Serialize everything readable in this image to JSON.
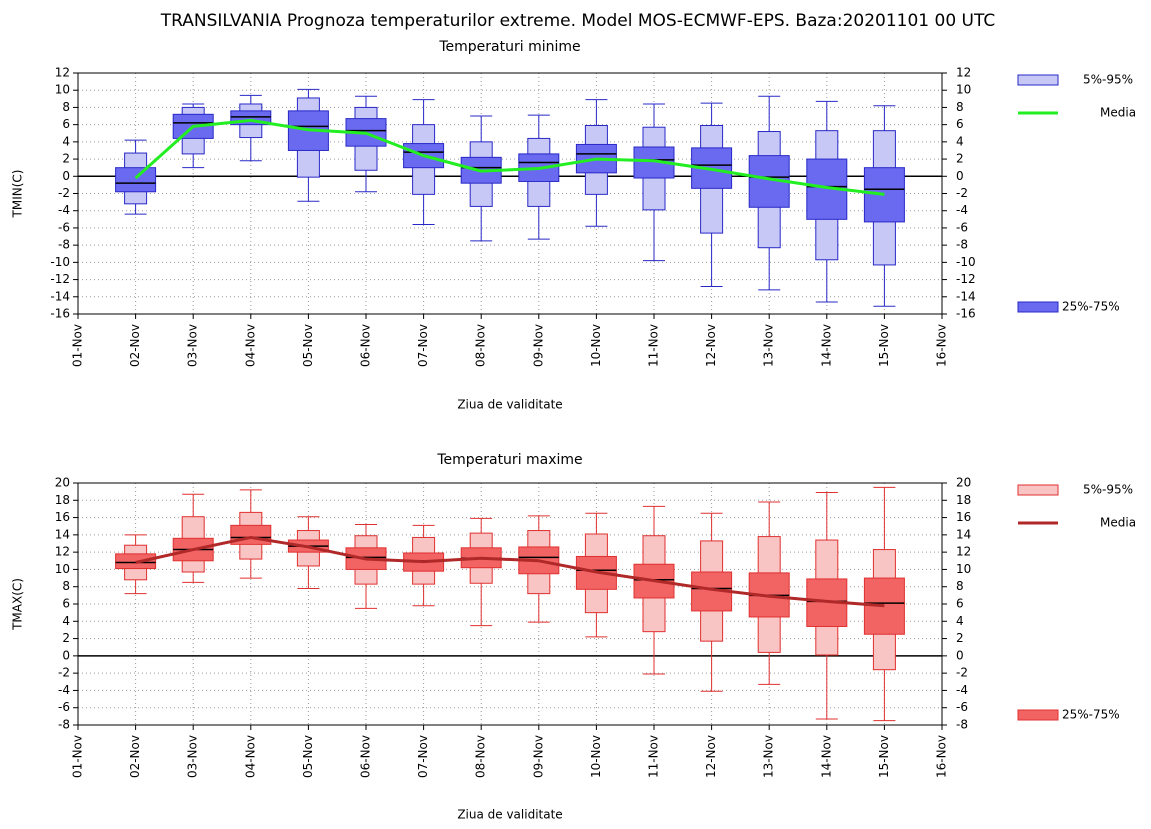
{
  "title": "TRANSILVANIA  Prognoza temperaturilor extreme.  Model MOS-ECMWF-EPS. Baza:20201101 00 UTC",
  "chart_data": [
    {
      "type": "box",
      "title": "Temperaturi minime",
      "title_color": "#2020e0",
      "ylabel": "TMIN(C)",
      "xlabel": "Ziua de validitate",
      "categories": [
        "01-Nov",
        "02-Nov",
        "03-Nov",
        "04-Nov",
        "05-Nov",
        "06-Nov",
        "07-Nov",
        "08-Nov",
        "09-Nov",
        "10-Nov",
        "11-Nov",
        "12-Nov",
        "13-Nov",
        "14-Nov",
        "15-Nov",
        "16-Nov"
      ],
      "ylim": [
        -16,
        12
      ],
      "yticks": [
        -16,
        -14,
        -12,
        -10,
        -8,
        -6,
        -4,
        -2,
        0,
        2,
        4,
        6,
        8,
        10,
        12
      ],
      "grid": true,
      "edge_color": "#2828c8",
      "whisker_low": [
        null,
        -4.4,
        1.0,
        1.8,
        -2.9,
        -1.8,
        -5.6,
        -7.5,
        -7.3,
        -5.8,
        -9.8,
        -12.8,
        -13.2,
        -14.6,
        -15.1,
        null
      ],
      "whisker_high": [
        null,
        4.2,
        8.4,
        9.4,
        10.1,
        9.3,
        8.9,
        7.0,
        7.1,
        8.9,
        8.4,
        8.5,
        9.3,
        8.7,
        8.2,
        null
      ],
      "median": [
        null,
        -0.8,
        6.2,
        6.9,
        5.8,
        5.3,
        2.8,
        1.0,
        1.6,
        2.6,
        1.9,
        1.3,
        -0.1,
        -1.2,
        -1.5,
        null
      ],
      "series": [
        {
          "name": "5%-95%",
          "color": "#c8c8f6",
          "low": [
            null,
            -3.2,
            2.6,
            4.5,
            -0.1,
            0.7,
            -2.1,
            -3.5,
            -3.5,
            -2.1,
            -3.9,
            -6.6,
            -8.3,
            -9.7,
            -10.3,
            null
          ],
          "high": [
            null,
            2.7,
            8.0,
            8.4,
            9.1,
            8.0,
            6.0,
            4.0,
            4.4,
            5.9,
            5.7,
            5.9,
            5.2,
            5.3,
            5.3,
            null
          ]
        },
        {
          "name": "Media",
          "color": "#22ee22",
          "values": [
            null,
            -0.2,
            5.8,
            6.5,
            5.4,
            5.0,
            2.4,
            0.6,
            0.9,
            2.0,
            1.8,
            0.8,
            -0.3,
            -1.3,
            -2.1,
            null
          ]
        },
        {
          "name": "25%-75%",
          "color": "#6a6af0",
          "low": [
            null,
            -1.8,
            4.4,
            6.0,
            3.0,
            3.5,
            1.0,
            -0.8,
            -0.6,
            0.4,
            -0.2,
            -1.4,
            -3.6,
            -5.0,
            -5.3,
            null
          ],
          "high": [
            null,
            1.0,
            7.2,
            7.6,
            7.6,
            6.7,
            3.8,
            2.2,
            2.6,
            3.7,
            3.4,
            3.3,
            2.4,
            2.0,
            1.0,
            null
          ]
        }
      ]
    },
    {
      "type": "box",
      "title": "Temperaturi maxime",
      "title_color": "#f02020",
      "ylabel": "TMAX(C)",
      "xlabel": "Ziua de validitate",
      "categories": [
        "01-Nov",
        "02-Nov",
        "03-Nov",
        "04-Nov",
        "05-Nov",
        "06-Nov",
        "07-Nov",
        "08-Nov",
        "09-Nov",
        "10-Nov",
        "11-Nov",
        "12-Nov",
        "13-Nov",
        "14-Nov",
        "15-Nov",
        "16-Nov"
      ],
      "ylim": [
        -8,
        20
      ],
      "yticks": [
        -8,
        -6,
        -4,
        -2,
        0,
        2,
        4,
        6,
        8,
        10,
        12,
        14,
        16,
        18,
        20
      ],
      "grid": true,
      "edge_color": "#e03030",
      "whisker_low": [
        null,
        7.2,
        8.5,
        9.0,
        7.8,
        5.5,
        5.8,
        3.5,
        3.9,
        2.2,
        -2.1,
        -4.1,
        -3.3,
        -7.3,
        -7.5,
        null
      ],
      "whisker_high": [
        null,
        14.0,
        18.7,
        19.2,
        16.1,
        15.2,
        15.1,
        15.9,
        16.2,
        16.5,
        17.3,
        16.5,
        17.8,
        18.9,
        19.5,
        null
      ],
      "median": [
        null,
        10.8,
        12.3,
        13.7,
        12.7,
        11.4,
        11.0,
        11.3,
        11.4,
        9.9,
        8.8,
        7.8,
        7.0,
        6.3,
        6.1,
        null
      ],
      "series": [
        {
          "name": "5%-95%",
          "color": "#f8c4c4",
          "low": [
            null,
            8.8,
            9.7,
            11.2,
            10.4,
            8.3,
            8.3,
            8.4,
            7.2,
            5.0,
            2.8,
            1.7,
            0.4,
            0.1,
            -1.6,
            null
          ],
          "high": [
            null,
            12.8,
            16.1,
            16.6,
            14.5,
            13.9,
            13.7,
            14.2,
            14.5,
            14.1,
            13.9,
            13.3,
            13.8,
            13.4,
            12.3,
            null
          ]
        },
        {
          "name": "Media",
          "color": "#b02828",
          "values": [
            null,
            10.8,
            12.3,
            13.7,
            12.6,
            11.2,
            10.9,
            11.3,
            11.0,
            9.7,
            8.7,
            7.7,
            6.9,
            6.3,
            5.8,
            null
          ]
        },
        {
          "name": "25%-75%",
          "color": "#f26464",
          "low": [
            null,
            10.1,
            11.0,
            12.9,
            12.0,
            10.0,
            9.8,
            10.2,
            9.5,
            7.7,
            6.7,
            5.2,
            4.5,
            3.4,
            2.5,
            null
          ],
          "high": [
            null,
            11.8,
            13.6,
            15.1,
            13.4,
            12.5,
            11.9,
            12.5,
            12.6,
            11.5,
            10.6,
            9.7,
            9.6,
            8.9,
            9.0,
            null
          ]
        }
      ]
    }
  ]
}
